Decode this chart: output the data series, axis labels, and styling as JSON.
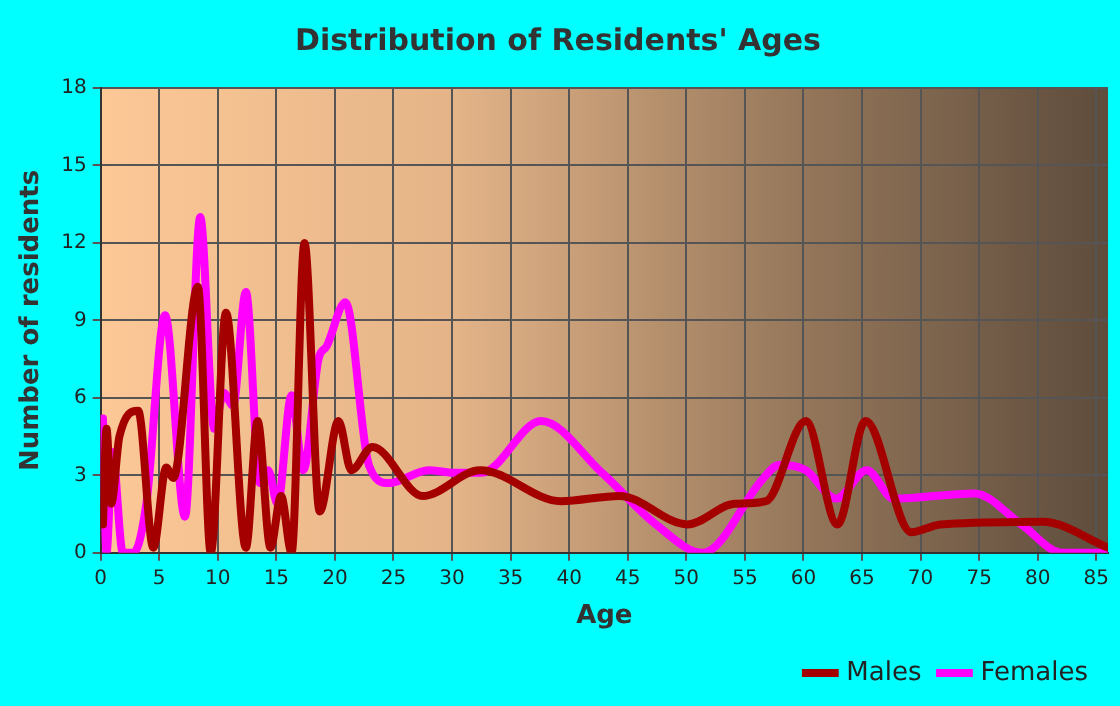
{
  "chart_data": {
    "type": "line",
    "title": "Distribution of Residents' Ages",
    "xlabel": "Age",
    "ylabel": "Number of residents",
    "xlim": [
      0,
      86
    ],
    "xticks": [
      0,
      5,
      10,
      15,
      20,
      25,
      30,
      35,
      40,
      45,
      50,
      55,
      60,
      65,
      70,
      75,
      80,
      85
    ],
    "ylim": [
      0,
      18
    ],
    "yticks": [
      0,
      3,
      6,
      9,
      12,
      15,
      18
    ],
    "grid": true,
    "legend": "bottom right",
    "marker": "none",
    "line_style": "solid",
    "series": [
      {
        "name": "Males",
        "color": "#a50000",
        "x": [
          0.2,
          0.5,
          0.9,
          1.6,
          3.2,
          4.5,
          5.6,
          6.2,
          8.3,
          9.4,
          10.7,
          12.4,
          13.4,
          14.5,
          15.4,
          16.3,
          17.4,
          18.7,
          20.3,
          21.4,
          23.2,
          27.5,
          32.4,
          39.3,
          44.3,
          50.1,
          54.1,
          56.8,
          60.2,
          62.9,
          65.3,
          69.2,
          71.7,
          80.4,
          86
        ],
        "values": [
          1.1,
          4.8,
          1.9,
          4.5,
          5.5,
          0.2,
          3.3,
          2.9,
          10.3,
          0,
          9.3,
          0.2,
          5.1,
          0.2,
          2.2,
          0,
          12,
          1.6,
          5.1,
          3.2,
          4.1,
          2.2,
          3.2,
          2,
          2.2,
          1.1,
          1.9,
          2,
          5.1,
          1.1,
          5.1,
          0.8,
          1.1,
          1.2,
          0.2
        ]
      },
      {
        "name": "Females",
        "color": "#ff00ff",
        "x": [
          0.2,
          0.5,
          1,
          1.9,
          2.8,
          3.9,
          5.5,
          7.2,
          8.5,
          9.7,
          10.5,
          11.3,
          12.4,
          13.6,
          14.3,
          15.1,
          16.3,
          17.3,
          18.6,
          19.3,
          20.9,
          22.9,
          24.6,
          28,
          30.2,
          32.5,
          37.6,
          42.8,
          47.4,
          51.4,
          56.6,
          57.9,
          60.2,
          62.8,
          65.4,
          67.7,
          74.6,
          78.6,
          82.1,
          86
        ],
        "values": [
          5.2,
          0,
          3.9,
          0,
          0,
          1.9,
          9.2,
          1.4,
          13,
          4.8,
          6.2,
          5.7,
          10.1,
          2.7,
          3.2,
          1.9,
          6.1,
          3.2,
          7.5,
          8,
          9.7,
          3.4,
          2.7,
          3.2,
          3.1,
          3.1,
          5.1,
          3.1,
          1.1,
          0,
          2.9,
          3.4,
          3.2,
          2.1,
          3.2,
          2.1,
          2.3,
          1.1,
          0,
          0
        ]
      }
    ]
  }
}
